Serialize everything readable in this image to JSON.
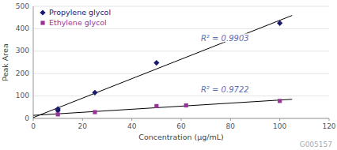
{
  "chart_data": {
    "type": "scatter",
    "title": "G005157",
    "x_label": "Concentration (µg/mL)",
    "y_label": "Peak Area",
    "xlim": [
      0,
      120
    ],
    "ylim": [
      0,
      500
    ],
    "xticks": [
      0,
      20,
      40,
      60,
      80,
      100,
      120
    ],
    "yticks": [
      0,
      100,
      200,
      300,
      400,
      500
    ],
    "grid": true,
    "legend": "upper left",
    "series": [
      {
        "name": "Propylene glycol",
        "type": "scatter",
        "color": "#1a1a6e",
        "marker": "diamond",
        "x": [
          10,
          10,
          25,
          50,
          100
        ],
        "values": [
          35,
          42,
          115,
          248,
          425
        ]
      },
      {
        "name": "Ethylene glycol",
        "type": "scatter",
        "color": "#993399",
        "marker": "square",
        "x": [
          10,
          25,
          50,
          62,
          100
        ],
        "values": [
          18,
          28,
          55,
          58,
          78
        ]
      },
      {
        "type": "line",
        "color": "#000000",
        "x": [
          0,
          105
        ],
        "values": [
          3.8409,
          459.2692
        ]
      },
      {
        "type": "line",
        "color": "#000000",
        "x": [
          0,
          105
        ],
        "values": [
          13.7217,
          85.3051
        ]
      }
    ],
    "annotations": [
      {
        "text": "R² = 0.9903",
        "x": 68,
        "y": 355,
        "color": "#5b6fb5"
      },
      {
        "text": "R² = 0.9722",
        "x": 68,
        "y": 128,
        "color": "#5b6fb5"
      }
    ]
  }
}
